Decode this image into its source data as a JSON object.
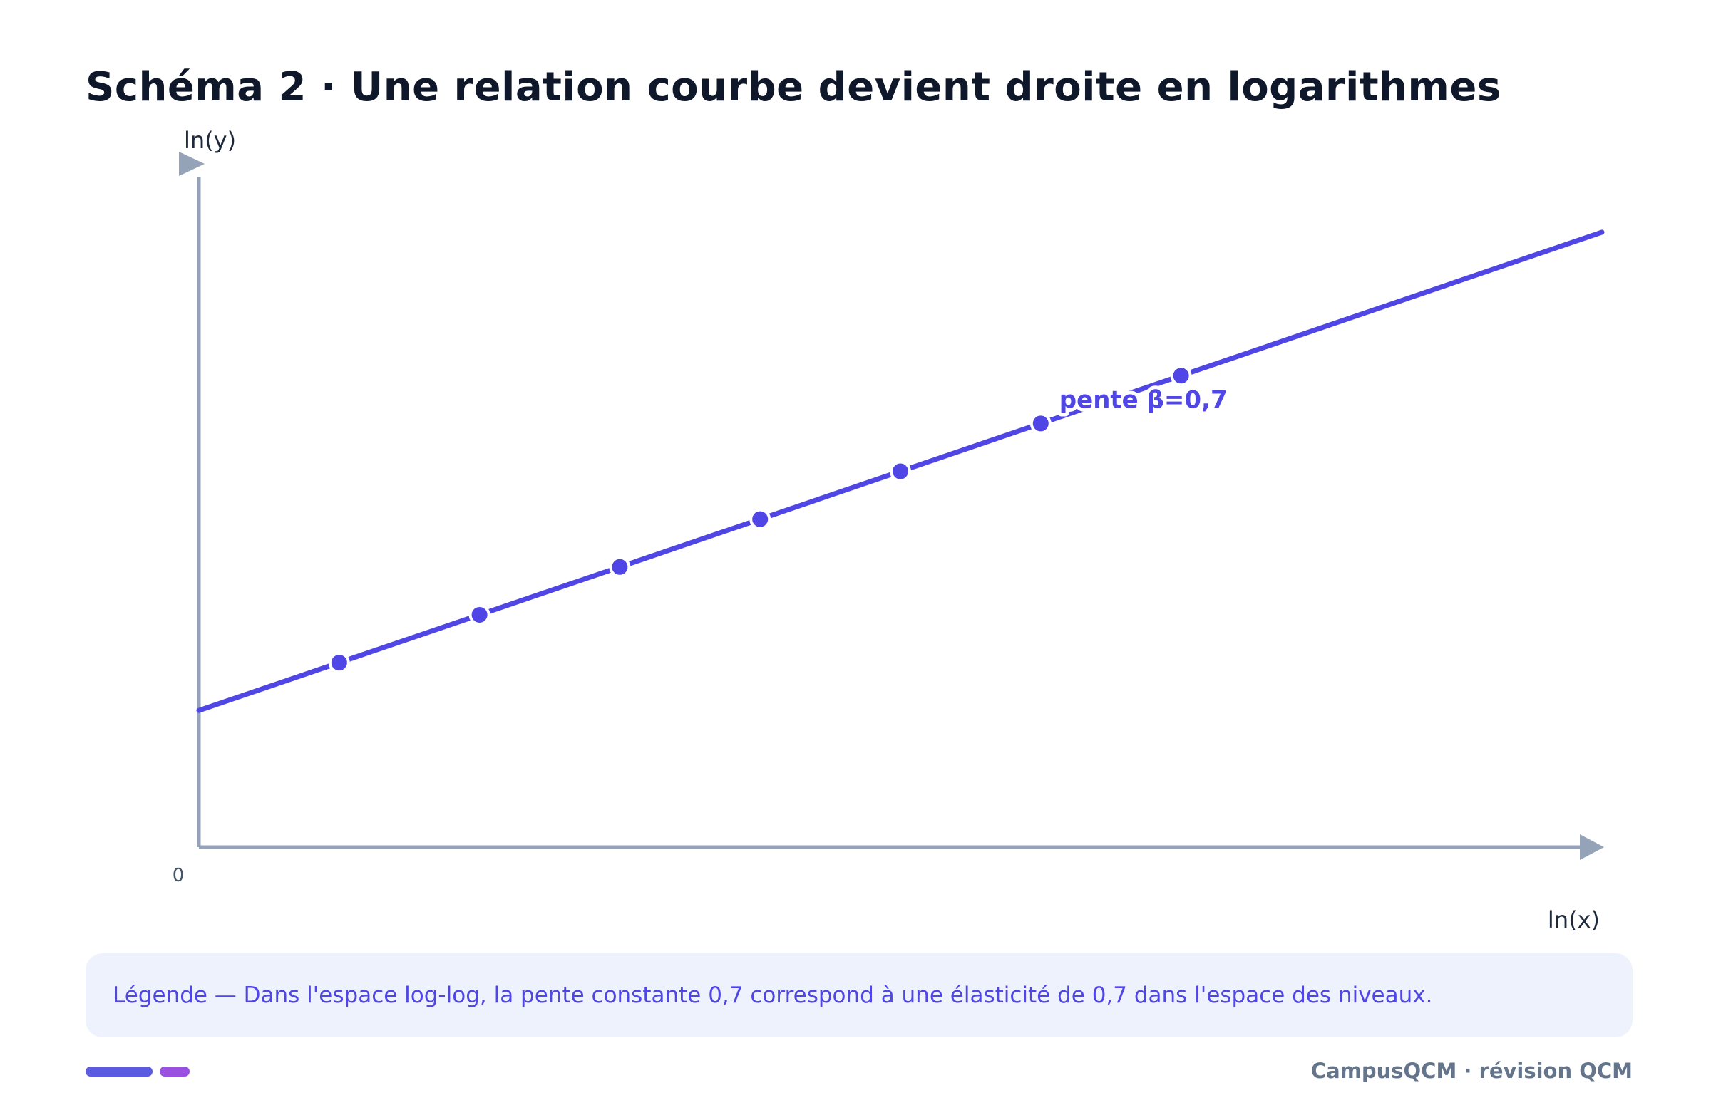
{
  "header": {
    "title": "Schéma 2 · Une relation courbe devient droite en logarithmes"
  },
  "chart_data": {
    "type": "line",
    "xlabel": "ln(x)",
    "ylabel": "ln(y)",
    "origin_label": "0",
    "line": {
      "intercept": 2.0,
      "slope": 0.7,
      "x_range": [
        0,
        10
      ]
    },
    "series": [
      {
        "x": [
          1,
          2,
          3,
          4,
          5,
          6,
          7
        ],
        "y": [
          2.7,
          3.4,
          4.1,
          4.8,
          5.5,
          6.2,
          6.9
        ]
      }
    ],
    "xlim": [
      0,
      10
    ],
    "ylim": [
      0,
      10
    ],
    "grid": false,
    "annotations": [
      {
        "text": "pente β=0,7",
        "x": 6,
        "y": 6.2
      }
    ],
    "colors": {
      "line": "#4f46e5",
      "axis": "#94a3b8"
    }
  },
  "caption": {
    "text": "Légende — Dans l'espace log-log, la pente constante 0,7 correspond à une élasticité de 0,7 dans l'espace des niveaux."
  },
  "footer": {
    "brand": "CampusQCM · révision QCM",
    "bar_colors": [
      "#5b5bdf",
      "#9b51e0"
    ]
  }
}
